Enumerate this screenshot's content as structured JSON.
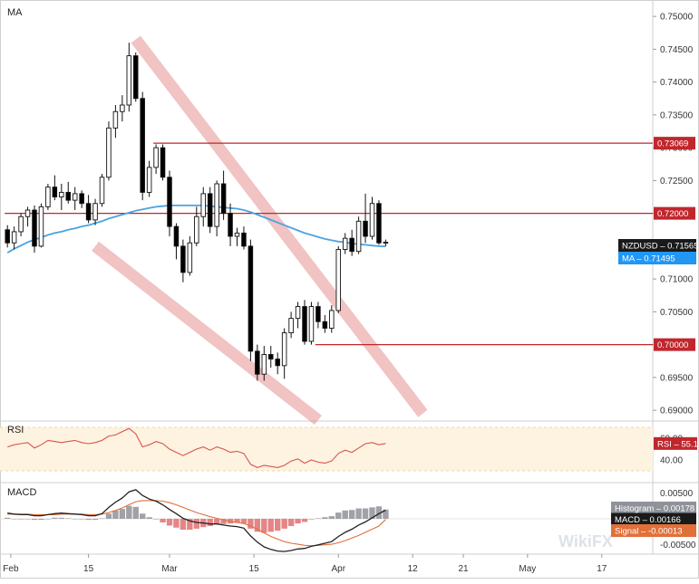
{
  "chart_data": {
    "type": "candlestick",
    "colors": {
      "bull_body": "#ffffff",
      "bear_body": "#000000",
      "ma": "#4aa3e0",
      "level": "#c0272d",
      "channel": "#e07a7a",
      "rsi": "#d9534f",
      "rsi_band": "#fdf3e0",
      "macd": "#222222",
      "signal": "#e0703a",
      "hist_pos": "#8f9299",
      "hist_neg": "#e07070",
      "tag_close": "#1a1a1a",
      "tag_ma": "#2196f3"
    },
    "price": {
      "label": "MA",
      "yticks": [
        "0.75000",
        "0.74500",
        "0.74000",
        "0.73500",
        "0.73000",
        "0.72500",
        "0.72000",
        "0.71500",
        "0.71000",
        "0.70500",
        "0.70000",
        "0.69500",
        "0.69000"
      ],
      "ylim": [
        0.6885,
        0.7525
      ],
      "candles": [
        [
          0.7175,
          0.7182,
          0.7148,
          0.7155
        ],
        [
          0.7155,
          0.718,
          0.7145,
          0.7172
        ],
        [
          0.7172,
          0.72,
          0.7165,
          0.7195
        ],
        [
          0.7195,
          0.721,
          0.718,
          0.7205
        ],
        [
          0.7205,
          0.7212,
          0.714,
          0.715
        ],
        [
          0.715,
          0.7215,
          0.7148,
          0.721
        ],
        [
          0.721,
          0.7245,
          0.7205,
          0.724
        ],
        [
          0.724,
          0.7258,
          0.722,
          0.7225
        ],
        [
          0.7225,
          0.7245,
          0.7205,
          0.7232
        ],
        [
          0.7232,
          0.7248,
          0.7215,
          0.722
        ],
        [
          0.722,
          0.724,
          0.7205,
          0.723
        ],
        [
          0.723,
          0.7235,
          0.7208,
          0.7215
        ],
        [
          0.7215,
          0.7228,
          0.7185,
          0.719
        ],
        [
          0.719,
          0.7222,
          0.7182,
          0.7215
        ],
        [
          0.7215,
          0.726,
          0.721,
          0.7255
        ],
        [
          0.7255,
          0.734,
          0.725,
          0.733
        ],
        [
          0.733,
          0.7365,
          0.7315,
          0.7355
        ],
        [
          0.7355,
          0.738,
          0.734,
          0.7365
        ],
        [
          0.7365,
          0.746,
          0.7355,
          0.744
        ],
        [
          0.744,
          0.7445,
          0.737,
          0.7375
        ],
        [
          0.7375,
          0.7385,
          0.722,
          0.7232
        ],
        [
          0.7232,
          0.728,
          0.7225,
          0.727
        ],
        [
          0.727,
          0.7305,
          0.726,
          0.73
        ],
        [
          0.73,
          0.7305,
          0.725,
          0.7255
        ],
        [
          0.7255,
          0.7265,
          0.7165,
          0.718
        ],
        [
          0.718,
          0.7185,
          0.713,
          0.715
        ],
        [
          0.715,
          0.716,
          0.7095,
          0.711
        ],
        [
          0.711,
          0.7165,
          0.7105,
          0.7155
        ],
        [
          0.7155,
          0.721,
          0.715,
          0.7195
        ],
        [
          0.7195,
          0.724,
          0.718,
          0.723
        ],
        [
          0.723,
          0.724,
          0.717,
          0.718
        ],
        [
          0.718,
          0.725,
          0.7165,
          0.7245
        ],
        [
          0.7245,
          0.7265,
          0.719,
          0.72
        ],
        [
          0.72,
          0.7215,
          0.715,
          0.7165
        ],
        [
          0.7165,
          0.7178,
          0.715,
          0.717
        ],
        [
          0.717,
          0.718,
          0.7145,
          0.715
        ],
        [
          0.715,
          0.716,
          0.6975,
          0.699
        ],
        [
          0.699,
          0.7,
          0.6945,
          0.6955
        ],
        [
          0.6955,
          0.6998,
          0.6945,
          0.6985
        ],
        [
          0.6985,
          0.6998,
          0.6965,
          0.6978
        ],
        [
          0.6978,
          0.6988,
          0.6955,
          0.6968
        ],
        [
          0.6968,
          0.7025,
          0.6948,
          0.7018
        ],
        [
          0.7018,
          0.705,
          0.701,
          0.704
        ],
        [
          0.704,
          0.7065,
          0.7025,
          0.7058
        ],
        [
          0.7058,
          0.7068,
          0.7,
          0.7005
        ],
        [
          0.7005,
          0.7065,
          0.7,
          0.7058
        ],
        [
          0.7058,
          0.7065,
          0.7025,
          0.7035
        ],
        [
          0.7035,
          0.7045,
          0.7018,
          0.7025
        ],
        [
          0.7025,
          0.706,
          0.7018,
          0.7052
        ],
        [
          0.7052,
          0.715,
          0.7048,
          0.7145
        ],
        [
          0.7145,
          0.717,
          0.7138,
          0.7162
        ],
        [
          0.7162,
          0.7175,
          0.7135,
          0.7142
        ],
        [
          0.7142,
          0.7195,
          0.7138,
          0.7188
        ],
        [
          0.7188,
          0.723,
          0.7155,
          0.7165
        ],
        [
          0.7165,
          0.7225,
          0.716,
          0.7215
        ],
        [
          0.7215,
          0.722,
          0.7152,
          0.7155
        ],
        [
          0.7155,
          0.716,
          0.715,
          0.7156
        ]
      ],
      "ma": [
        0.714,
        0.7146,
        0.7151,
        0.7156,
        0.716,
        0.7163,
        0.7167,
        0.717,
        0.7172,
        0.7175,
        0.7177,
        0.718,
        0.7182,
        0.7185,
        0.7188,
        0.7192,
        0.7195,
        0.7198,
        0.7201,
        0.7204,
        0.7206,
        0.7208,
        0.721,
        0.7211,
        0.7212,
        0.7212,
        0.7212,
        0.7212,
        0.7212,
        0.7212,
        0.7211,
        0.721,
        0.7209,
        0.7208,
        0.7207,
        0.7205,
        0.7202,
        0.7198,
        0.7194,
        0.719,
        0.7186,
        0.7182,
        0.7178,
        0.7174,
        0.717,
        0.7167,
        0.7164,
        0.7161,
        0.7159,
        0.7157,
        0.7156,
        0.7154,
        0.7153,
        0.7152,
        0.7151,
        0.715,
        0.71495
      ],
      "levels": [
        {
          "value": 0.73069,
          "label": "0.73069",
          "from": 22
        },
        {
          "value": 0.72,
          "label": "0.72000",
          "from": 0
        },
        {
          "value": 0.7,
          "label": "0.70000",
          "from": 46
        }
      ],
      "channel": [
        {
          "from": [
            19,
            0.7465
          ],
          "to": [
            61.5,
            0.6895
          ]
        },
        {
          "from": [
            13,
            0.715
          ],
          "to": [
            46,
            0.6885
          ]
        }
      ],
      "tags": [
        {
          "text": "NZDUSD – 0.71565",
          "value": 0.71565,
          "kind": "close"
        },
        {
          "text": "MA – 0.71495",
          "value": 0.71495,
          "kind": "ma"
        }
      ]
    },
    "rsi": {
      "label": "RSI",
      "yticks": [
        "60.00",
        "40.00"
      ],
      "ylim": [
        20,
        75
      ],
      "band": [
        30,
        70
      ],
      "values": [
        52,
        54,
        55,
        56,
        51,
        54,
        58,
        57,
        56,
        57,
        58,
        56,
        55,
        56,
        58,
        62,
        63,
        66,
        69,
        64,
        52,
        54,
        57,
        55,
        50,
        47,
        44,
        47,
        50,
        52,
        49,
        52,
        50,
        47,
        48,
        46,
        36,
        33,
        35,
        34,
        33,
        35,
        39,
        41,
        37,
        40,
        38,
        37,
        39,
        46,
        49,
        47,
        51,
        55,
        56,
        54,
        55.15
      ],
      "tag": {
        "text": "RSI – 55.15",
        "value": 55.15
      }
    },
    "macd": {
      "label": "MACD",
      "yticks": [
        "0.00500",
        "-0.00500"
      ],
      "ylim": [
        -0.0068,
        0.0068
      ],
      "macd": [
        0.0011,
        0.0009,
        0.0008,
        0.0008,
        0.0006,
        0.0006,
        0.0008,
        0.001,
        0.0011,
        0.001,
        0.0009,
        0.0008,
        0.0006,
        0.0006,
        0.001,
        0.0022,
        0.0032,
        0.004,
        0.0052,
        0.0056,
        0.0045,
        0.0038,
        0.0034,
        0.0027,
        0.0018,
        0.001,
        0.0001,
        -0.0004,
        -0.0007,
        -0.0008,
        -0.001,
        -0.001,
        -0.0012,
        -0.0014,
        -0.0015,
        -0.0018,
        -0.0033,
        -0.0045,
        -0.0054,
        -0.0059,
        -0.0062,
        -0.0063,
        -0.0061,
        -0.0058,
        -0.0057,
        -0.0053,
        -0.005,
        -0.0047,
        -0.0044,
        -0.0034,
        -0.0026,
        -0.002,
        -0.0012,
        -0.0006,
        0.0002,
        0.001,
        0.00166
      ],
      "signal": [
        0.0009,
        0.0009,
        0.0009,
        0.0009,
        0.0008,
        0.0008,
        0.0008,
        0.0008,
        0.0009,
        0.0009,
        0.0009,
        0.0009,
        0.0008,
        0.0008,
        0.0009,
        0.0012,
        0.0016,
        0.0021,
        0.0027,
        0.0033,
        0.0035,
        0.0035,
        0.0035,
        0.0034,
        0.0031,
        0.0027,
        0.0022,
        0.0017,
        0.0012,
        0.0008,
        0.0004,
        0.0001,
        -0.0002,
        -0.0005,
        -0.0007,
        -0.0009,
        -0.0014,
        -0.002,
        -0.0027,
        -0.0034,
        -0.0039,
        -0.0044,
        -0.0047,
        -0.0049,
        -0.0051,
        -0.0052,
        -0.0051,
        -0.005,
        -0.0049,
        -0.0046,
        -0.0042,
        -0.0037,
        -0.0032,
        -0.0026,
        -0.002,
        -0.0014,
        -0.00013
      ],
      "tags": [
        {
          "text": "Histogram – 0.00178",
          "value": 0.004,
          "kind": "hist"
        },
        {
          "text": "MACD – 0.00166",
          "value": 0.001,
          "kind": "macd"
        },
        {
          "text": "Signal – -0.00013",
          "value": -0.0008,
          "kind": "signal"
        }
      ]
    },
    "xaxis": {
      "labels": [
        {
          "text": "Feb",
          "index": 0.5
        },
        {
          "text": "15",
          "index": 12
        },
        {
          "text": "Mar",
          "index": 24
        },
        {
          "text": "15",
          "index": 36.5
        },
        {
          "text": "Apr",
          "index": 49
        },
        {
          "text": "12",
          "index": 60
        },
        {
          "text": "21",
          "index": 67.5
        },
        {
          "text": "May",
          "index": 77
        },
        {
          "text": "17",
          "index": 88
        }
      ]
    },
    "watermark": "WikiFX"
  }
}
